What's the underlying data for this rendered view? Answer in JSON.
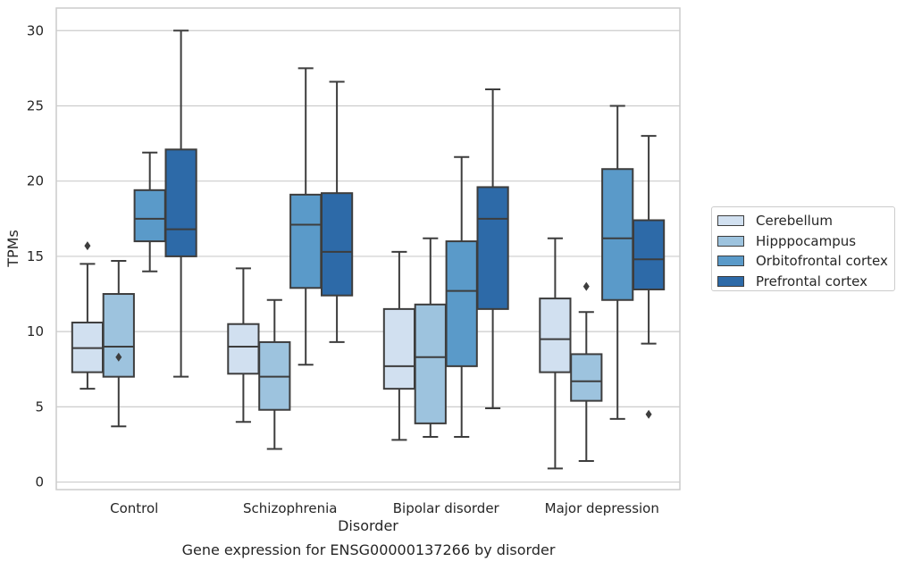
{
  "caption": "Gene expression for ENSG00000137266 by disorder",
  "chart_data": {
    "type": "box",
    "xlabel": "Disorder",
    "ylabel": "TPMs",
    "ylim": [
      -0.5,
      31.5
    ],
    "yticks": [
      0,
      5,
      10,
      15,
      20,
      25,
      30
    ],
    "grid": "horizontal",
    "legend_position": "right",
    "categories": [
      "Control",
      "Schizophrenia",
      "Bipolar disorder",
      "Major depression"
    ],
    "series": [
      {
        "name": "Cerebellum",
        "color": "#d1e0f0",
        "boxes": [
          {
            "whisker_low": 6.2,
            "q1": 7.3,
            "median": 8.9,
            "q3": 10.6,
            "whisker_high": 14.5,
            "outliers": [
              15.7
            ]
          },
          {
            "whisker_low": 4.0,
            "q1": 7.2,
            "median": 9.0,
            "q3": 10.5,
            "whisker_high": 14.2,
            "outliers": []
          },
          {
            "whisker_low": 2.8,
            "q1": 6.2,
            "median": 7.7,
            "q3": 11.5,
            "whisker_high": 15.3,
            "outliers": []
          },
          {
            "whisker_low": 0.9,
            "q1": 7.3,
            "median": 9.5,
            "q3": 12.2,
            "whisker_high": 16.2,
            "outliers": []
          }
        ]
      },
      {
        "name": "Hipppocampus",
        "color": "#9dc3de",
        "boxes": [
          {
            "whisker_low": 3.7,
            "q1": 7.0,
            "median": 9.0,
            "q3": 12.5,
            "whisker_high": 14.7,
            "outliers": [
              8.3
            ]
          },
          {
            "whisker_low": 2.2,
            "q1": 4.8,
            "median": 7.0,
            "q3": 9.3,
            "whisker_high": 12.1,
            "outliers": []
          },
          {
            "whisker_low": 3.0,
            "q1": 3.9,
            "median": 8.3,
            "q3": 11.8,
            "whisker_high": 16.2,
            "outliers": []
          },
          {
            "whisker_low": 1.4,
            "q1": 5.4,
            "median": 6.7,
            "q3": 8.5,
            "whisker_high": 11.3,
            "outliers": [
              13.0
            ]
          }
        ]
      },
      {
        "name": "Orbitofrontal cortex",
        "color": "#5a9ac9",
        "boxes": [
          {
            "whisker_low": 14.0,
            "q1": 16.0,
            "median": 17.5,
            "q3": 19.4,
            "whisker_high": 21.9,
            "outliers": []
          },
          {
            "whisker_low": 7.8,
            "q1": 12.9,
            "median": 17.1,
            "q3": 19.1,
            "whisker_high": 27.5,
            "outliers": []
          },
          {
            "whisker_low": 3.0,
            "q1": 7.7,
            "median": 12.7,
            "q3": 16.0,
            "whisker_high": 21.6,
            "outliers": []
          },
          {
            "whisker_low": 4.2,
            "q1": 12.1,
            "median": 16.2,
            "q3": 20.8,
            "whisker_high": 25.0,
            "outliers": []
          }
        ]
      },
      {
        "name": "Prefrontal cortex",
        "color": "#2d6aa8",
        "boxes": [
          {
            "whisker_low": 7.0,
            "q1": 15.0,
            "median": 16.8,
            "q3": 22.1,
            "whisker_high": 30.0,
            "outliers": []
          },
          {
            "whisker_low": 9.3,
            "q1": 12.4,
            "median": 15.3,
            "q3": 19.2,
            "whisker_high": 26.6,
            "outliers": []
          },
          {
            "whisker_low": 4.9,
            "q1": 11.5,
            "median": 17.5,
            "q3": 19.6,
            "whisker_high": 26.1,
            "outliers": []
          },
          {
            "whisker_low": 9.2,
            "q1": 12.8,
            "median": 14.8,
            "q3": 17.4,
            "whisker_high": 23.0,
            "outliers": [
              4.5
            ]
          }
        ]
      }
    ]
  }
}
